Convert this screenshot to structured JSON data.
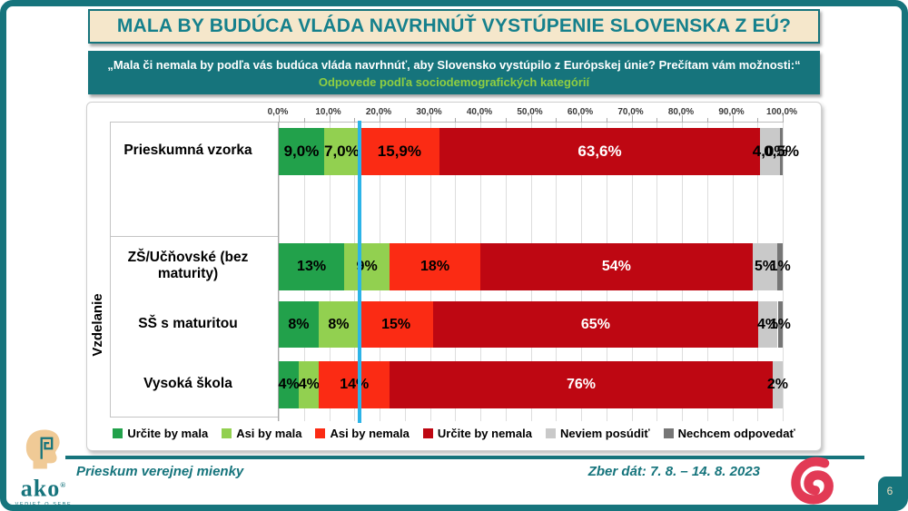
{
  "slide": {
    "title": "MALA BY BUDÚCA VLÁDA NAVRHNÚŤ VYSTÚPENIE SLOVENSKA Z EÚ?",
    "question_line1": "„Mala či nemala by podľa vás budúca vláda navrhnúť, aby Slovensko vystúpilo z Európskej únie? Prečítam vám možnosti:“",
    "question_line2": "Odpovede podľa sociodemografických kategórií",
    "page_number": "6"
  },
  "footer": {
    "left_text": "Prieskum verejnej mienky",
    "right_text": "Zber dát: 7. 8. – 14. 8. 2023",
    "logo_word": "ako",
    "logo_caption": "VEDIEŤ O SEBE"
  },
  "colors": {
    "brand_teal": "#16747C",
    "title_text": "#15808C",
    "banner_cream": "#F5E7CB",
    "subtitle_green": "#8FCE41",
    "reference_line": "#2CB4E8",
    "swirl_logo": "#E23A55"
  },
  "chart_data": {
    "type": "bar",
    "stacked": true,
    "orientation": "horizontal",
    "xlim": [
      0,
      100
    ],
    "gridlines_every_percent": 5,
    "x_axis_ticks": [
      "0,0%",
      "10,0%",
      "20,0%",
      "30,0%",
      "40,0%",
      "50,0%",
      "60,0%",
      "70,0%",
      "80,0%",
      "90,0%",
      "100,0%"
    ],
    "group_label": "Vzdelanie",
    "reference_line_at_percent": 16,
    "legend_position": "bottom",
    "series": [
      {
        "name": "Určite by mala",
        "color": "#22A14B",
        "text_color": "#000000"
      },
      {
        "name": "Asi by mala",
        "color": "#92D050",
        "text_color": "#000000"
      },
      {
        "name": "Asi by nemala",
        "color": "#FB2B14",
        "text_color": "#000000"
      },
      {
        "name": "Určite by nemala",
        "color": "#BE0712",
        "text_color": "#FFFFFF"
      },
      {
        "name": "Neviem posúdiť",
        "color": "#C9C9C9",
        "text_color": "#000000"
      },
      {
        "name": "Nechcem odpovedať",
        "color": "#767676",
        "text_color": "#000000"
      }
    ],
    "rows": [
      {
        "category": "Prieskumná vzorka",
        "group": "",
        "values": [
          9.0,
          7.0,
          15.9,
          63.6,
          4.0,
          0.5
        ],
        "labels": [
          "9,0%",
          "7,0%",
          "15,9%",
          "63,6%",
          "4,0%",
          "0,5%"
        ]
      },
      {
        "category": "ZŠ/Učňovské (bez maturity)",
        "group": "Vzdelanie",
        "values": [
          13,
          9,
          18,
          54,
          5,
          1
        ],
        "labels": [
          "13%",
          "9%",
          "18%",
          "54%",
          "5%",
          "1%"
        ]
      },
      {
        "category": "SŠ s maturitou",
        "group": "Vzdelanie",
        "values": [
          8,
          8,
          15,
          65,
          4,
          1
        ],
        "labels": [
          "8%",
          "8%",
          "15%",
          "65%",
          "4%",
          "1%"
        ]
      },
      {
        "category": "Vysoká škola",
        "group": "Vzdelanie",
        "values": [
          4,
          4,
          14,
          76,
          2,
          0
        ],
        "labels": [
          "4%",
          "4%",
          "14%",
          "76%",
          "2%",
          ""
        ]
      }
    ]
  }
}
